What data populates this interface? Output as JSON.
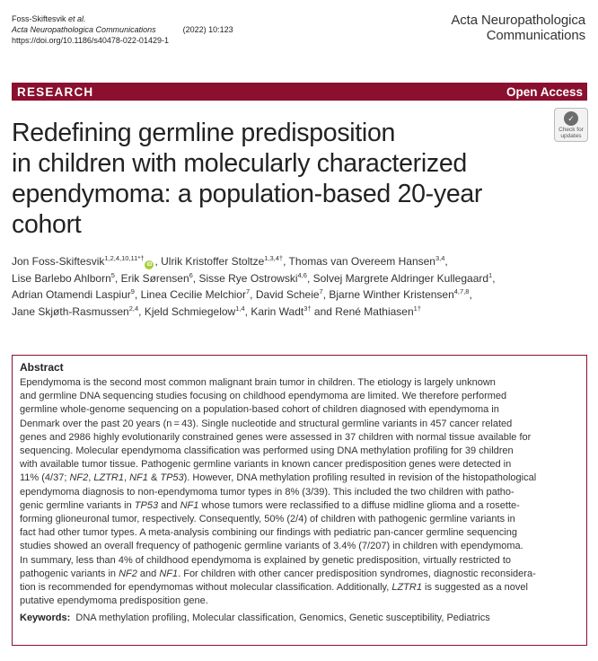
{
  "citation": {
    "authors": "Foss-Skiftesvik",
    "et_al": "et al.",
    "journal": "Acta Neuropathologica Communications",
    "year_volume": "(2022) 10:123",
    "doi": "https://doi.org/10.1186/s40478-022-01429-1"
  },
  "brand": {
    "line1": "Acta Neuropathologica",
    "line2": "Communications"
  },
  "bar": {
    "section": "RESEARCH",
    "access": "Open Access"
  },
  "badge": {
    "line1": "Check for",
    "line2": "updates"
  },
  "title": {
    "line1": "Redefining germline predisposition",
    "line2": "in children with molecularly characterized",
    "line3": "ependymoma: a population-based 20-year",
    "line4": "cohort"
  },
  "authors": [
    [
      {
        "name": "Jon Foss-Skiftesvik",
        "sup": "1,2,4,10,11*†",
        "orcid": true
      },
      {
        "name": ", Ulrik Kristoffer Stoltze",
        "sup": "1,3,4†"
      },
      {
        "name": ", Thomas van Overeem Hansen",
        "sup": "3,4"
      },
      {
        "name": ",",
        "sup": ""
      }
    ],
    [
      {
        "name": "Lise Barlebo Ahlborn",
        "sup": "5"
      },
      {
        "name": ", Erik Sørensen",
        "sup": "6"
      },
      {
        "name": ", Sisse Rye Ostrowski",
        "sup": "4,6"
      },
      {
        "name": ", Solvej Margrete Aldringer Kullegaard",
        "sup": "1"
      },
      {
        "name": ",",
        "sup": ""
      }
    ],
    [
      {
        "name": "Adrian Otamendi Laspiur",
        "sup": "9"
      },
      {
        "name": ", Linea Cecilie Melchior",
        "sup": "7"
      },
      {
        "name": ", David Scheie",
        "sup": "7"
      },
      {
        "name": ", Bjarne Winther Kristensen",
        "sup": "4,7,8"
      },
      {
        "name": ",",
        "sup": ""
      }
    ],
    [
      {
        "name": "Jane Skjøth-Rasmussen",
        "sup": "2,4"
      },
      {
        "name": ", Kjeld Schmiegelow",
        "sup": "1,4"
      },
      {
        "name": ", Karin Wadt",
        "sup": "3†"
      },
      {
        "name": " and René Mathiasen",
        "sup": "1†"
      }
    ]
  ],
  "abstract": {
    "heading": "Abstract",
    "lines": [
      "Ependymoma is the second most common malignant brain tumor in children. The etiology is largely unknown",
      "and germline DNA sequencing studies focusing on childhood ependymoma are limited. We therefore performed",
      "germline whole-genome sequencing on a population-based cohort of children diagnosed with ependymoma in",
      "Denmark over the past 20 years (n = 43). Single nucleotide and structural germline variants in 457 cancer related",
      "genes and 2986 highly evolutionarily constrained genes were assessed in 37 children with normal tissue available for",
      "sequencing. Molecular ependymoma classification was performed using DNA methylation profiling for 39 children",
      "with available tumor tissue. Pathogenic germline variants in known cancer predisposition genes were detected in",
      "11% (4/37; NF2, LZTR1, NF1 & TP53). However, DNA methylation profiling resulted in revision of the histopathological",
      "ependymoma diagnosis to non-ependymoma tumor types in 8% (3/39). This included the two children with patho-",
      "genic germline variants in TP53 and NF1 whose tumors were reclassified to a diffuse midline glioma and a rosette-",
      "forming glioneuronal tumor, respectively. Consequently, 50% (2/4) of children with pathogenic germline variants in",
      "fact had other tumor types. A meta-analysis combining our findings with pediatric pan-cancer germline sequencing",
      "studies showed an overall frequency of pathogenic germline variants of 3.4% (7/207) in children with ependymoma.",
      "In summary, less than 4% of childhood ependymoma is explained by genetic predisposition, virtually restricted to",
      "pathogenic variants in NF2 and NF1. For children with other cancer predisposition syndromes, diagnostic reconsidera-",
      "tion is recommended for ependymomas without molecular classification. Additionally, LZTR1 is suggested as a novel",
      "putative ependymoma predisposition gene."
    ],
    "keywords_label": "Keywords:",
    "keywords": "DNA methylation profiling, Molecular classification, Genomics, Genetic susceptibility, Pediatrics"
  }
}
